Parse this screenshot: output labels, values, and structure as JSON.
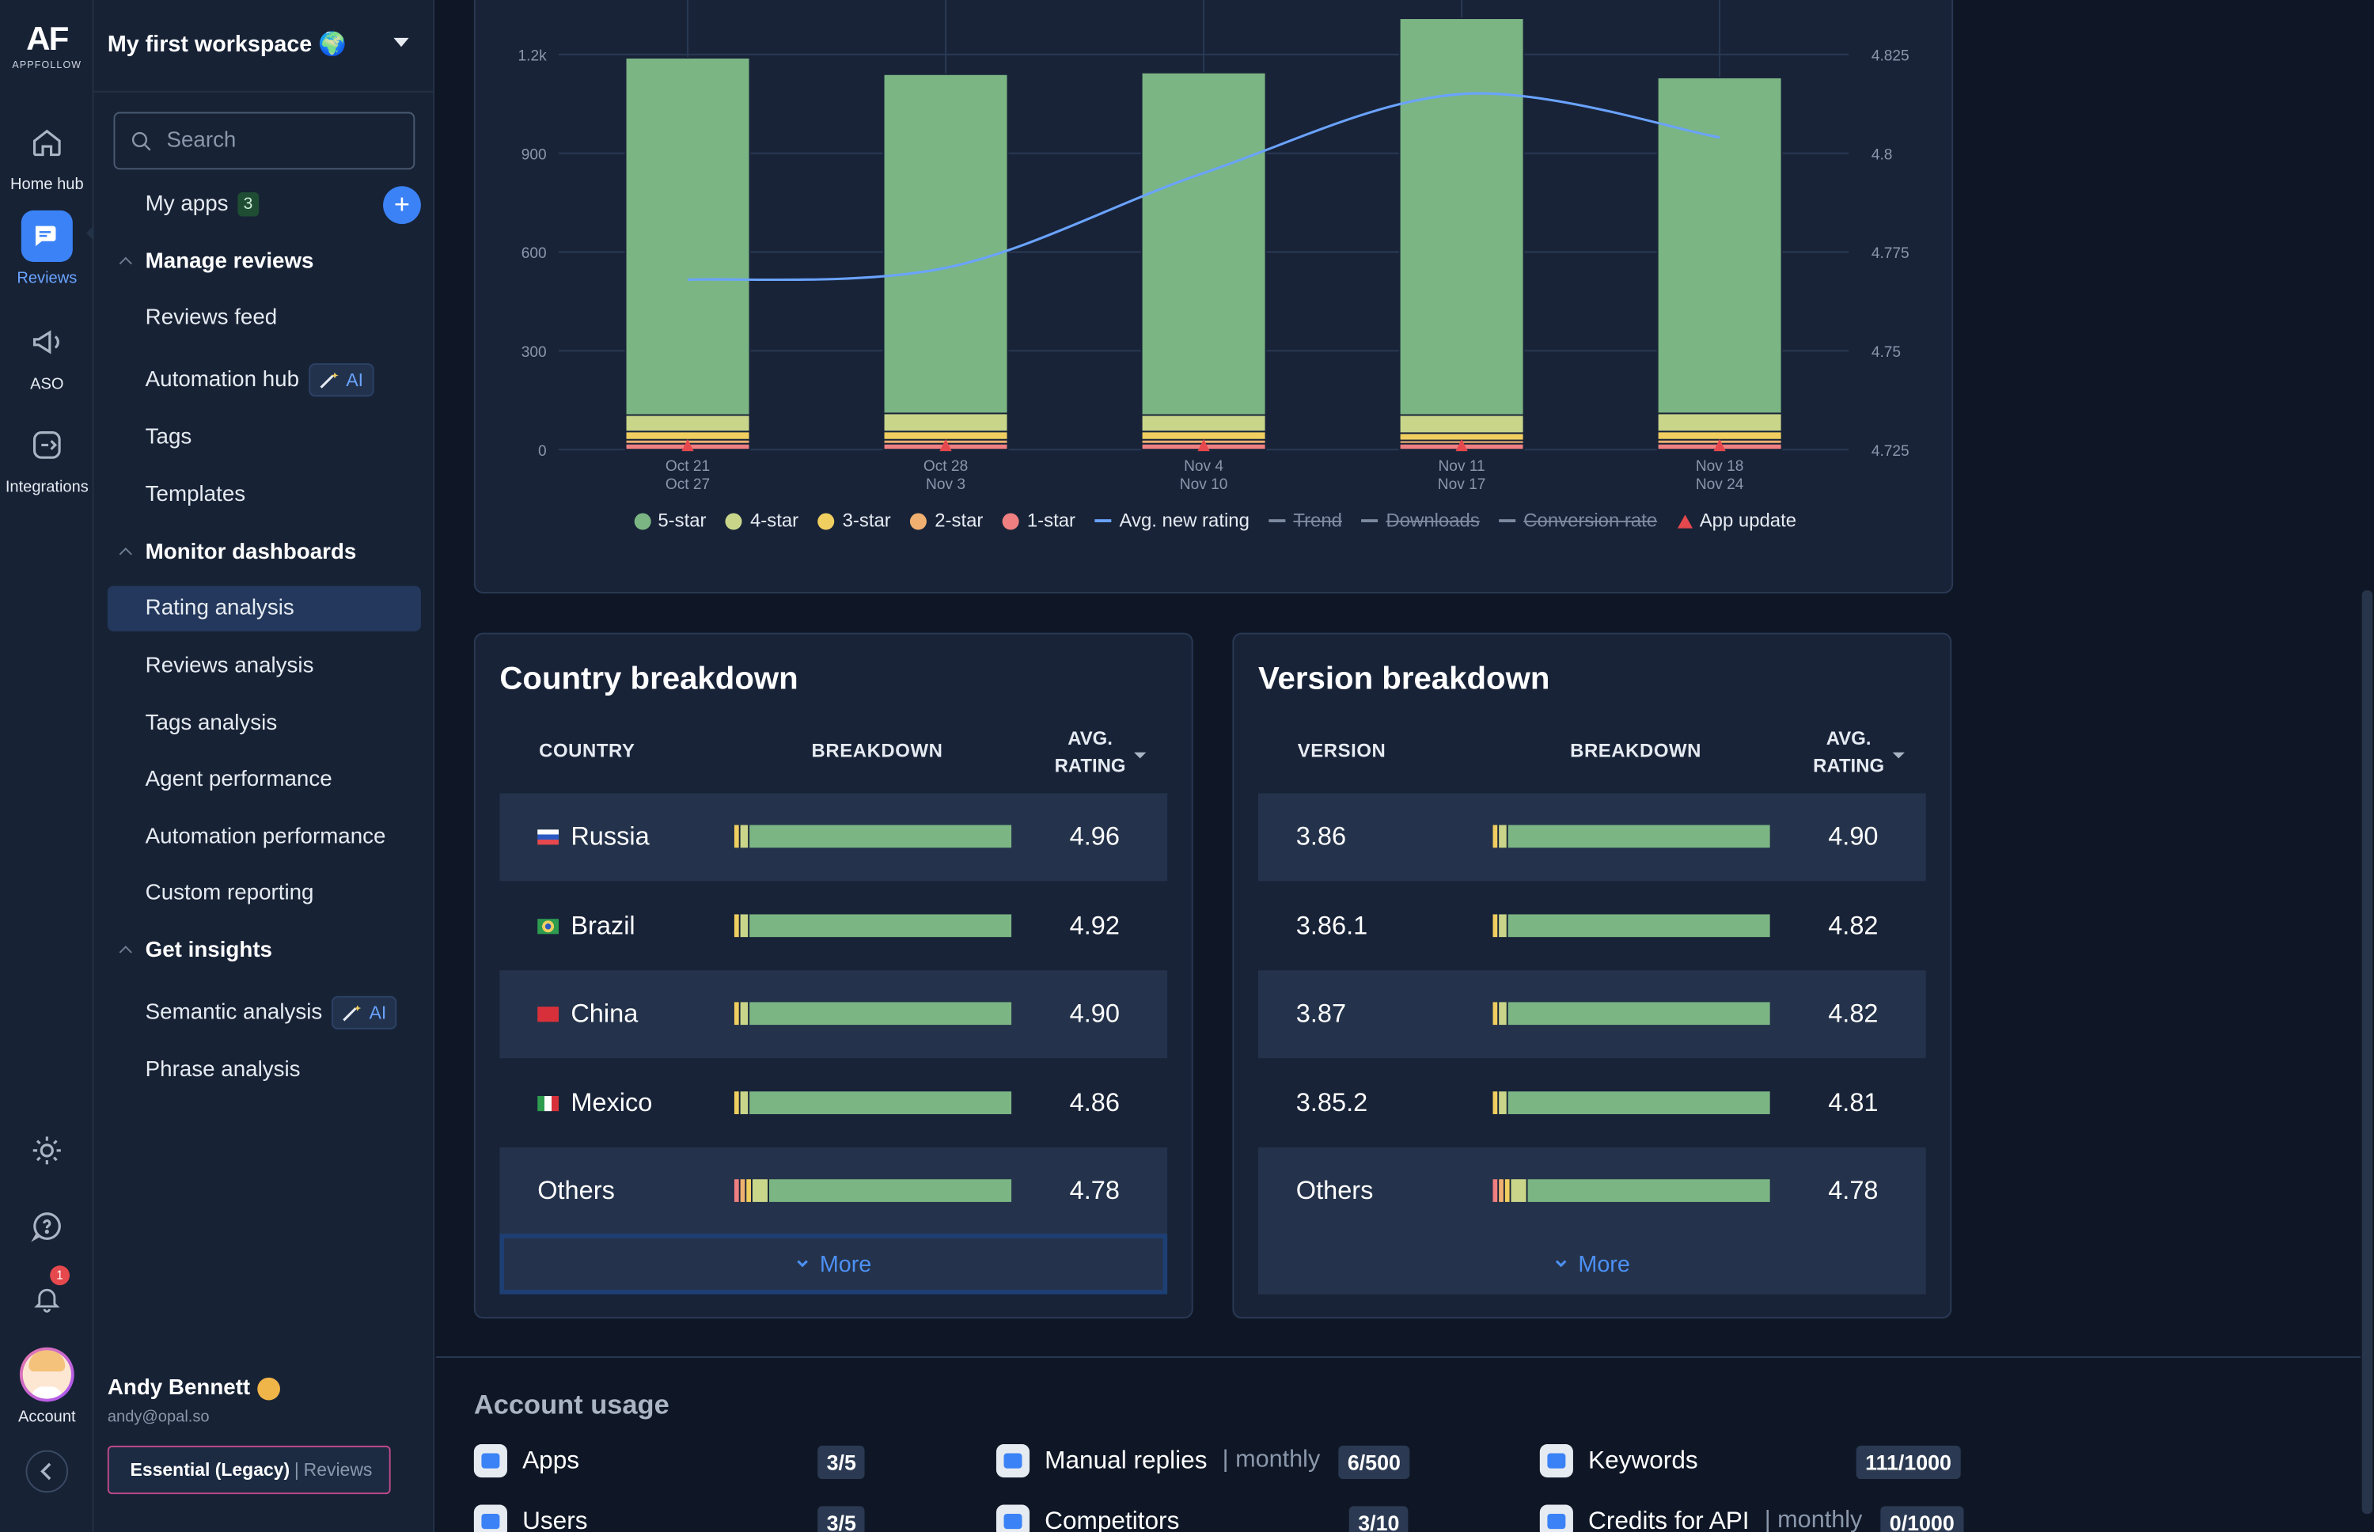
{
  "rail": {
    "logo_text": "AF",
    "logo_sub": "APPFOLLOW",
    "items": [
      {
        "label": "Home hub",
        "icon": "home-icon"
      },
      {
        "label": "Reviews",
        "icon": "chat-icon"
      },
      {
        "label": "ASO",
        "icon": "megaphone-icon"
      },
      {
        "label": "Integrations",
        "icon": "integrations-icon"
      }
    ],
    "notification_count": "1",
    "account_label": "Account"
  },
  "sidebar": {
    "workspace": "My first workspace 🌍",
    "search_placeholder": "Search",
    "my_apps": "My apps",
    "my_apps_count": "3",
    "manage_reviews": "Manage reviews",
    "reviews_feed": "Reviews feed",
    "automation_hub": "Automation hub",
    "ai_label": "AI",
    "tags": "Tags",
    "templates": "Templates",
    "monitor_dashboards": "Monitor dashboards",
    "rating_analysis": "Rating analysis",
    "reviews_analysis": "Reviews analysis",
    "tags_analysis": "Tags analysis",
    "agent_performance": "Agent performance",
    "automation_performance": "Automation performance",
    "custom_reporting": "Custom reporting",
    "get_insights": "Get insights",
    "semantic_analysis": "Semantic analysis",
    "phrase_analysis": "Phrase analysis",
    "user_name": "Andy Bennett",
    "user_email": "andy@opal.so",
    "plan_name": "Essential (Legacy)",
    "plan_sep": "|",
    "plan_product": "Reviews"
  },
  "chart_data": {
    "type": "bar",
    "categories": [
      "Oct 21\nOct 27",
      "Oct 28\nNov 3",
      "Nov 4\nNov 10",
      "Nov 11\nNov 17",
      "Nov 18\nNov 24"
    ],
    "category_lines": [
      [
        "Oct 21",
        "Oct 27"
      ],
      [
        "Oct 28",
        "Nov 3"
      ],
      [
        "Nov 4",
        "Nov 10"
      ],
      [
        "Nov 11",
        "Nov 17"
      ],
      [
        "Nov 18",
        "Nov 24"
      ]
    ],
    "stacked": true,
    "ylim": [
      0,
      1200
    ],
    "y_ticks": [
      "0",
      "300",
      "600",
      "900",
      "1.2k"
    ],
    "y2lim": [
      4.725,
      4.825
    ],
    "y2_ticks": [
      "4.725",
      "4.75",
      "4.775",
      "4.8",
      "4.825"
    ],
    "series": [
      {
        "name": "5-star",
        "color": "#7bb584",
        "values": [
          1085,
          1030,
          1040,
          1205,
          1020
        ]
      },
      {
        "name": "4-star",
        "color": "#c9d68a",
        "values": [
          50,
          55,
          50,
          55,
          55
        ]
      },
      {
        "name": "3-star",
        "color": "#f0cf60",
        "values": [
          25,
          25,
          25,
          22,
          25
        ]
      },
      {
        "name": "2-star",
        "color": "#f0b070",
        "values": [
          12,
          12,
          12,
          10,
          12
        ]
      },
      {
        "name": "1-star",
        "color": "#ef7f80",
        "values": [
          18,
          18,
          18,
          18,
          18
        ]
      }
    ],
    "line_series": {
      "name": "Avg. new rating",
      "color": "#6aa3ff",
      "values": [
        4.768,
        4.771,
        4.795,
        4.815,
        4.804
      ]
    },
    "legend": [
      {
        "label": "5-star",
        "kind": "dot",
        "color": "#7bb584",
        "enabled": true
      },
      {
        "label": "4-star",
        "kind": "dot",
        "color": "#c9d68a",
        "enabled": true
      },
      {
        "label": "3-star",
        "kind": "dot",
        "color": "#f0cf60",
        "enabled": true
      },
      {
        "label": "2-star",
        "kind": "dot",
        "color": "#f0b070",
        "enabled": true
      },
      {
        "label": "1-star",
        "kind": "dot",
        "color": "#ef7f80",
        "enabled": true
      },
      {
        "label": "Avg. new rating",
        "kind": "line",
        "color": "#6aa3ff",
        "enabled": true
      },
      {
        "label": "Trend",
        "kind": "line",
        "color": "#7d8aa0",
        "enabled": false
      },
      {
        "label": "Downloads",
        "kind": "line",
        "color": "#7d8aa0",
        "enabled": false
      },
      {
        "label": "Conversion rate",
        "kind": "line",
        "color": "#7d8aa0",
        "enabled": false
      },
      {
        "label": "App update",
        "kind": "triangle",
        "color": "#e5484d",
        "enabled": true
      }
    ],
    "legend_position": "bottom",
    "grid": true
  },
  "country": {
    "title": "Country breakdown",
    "col1": "COUNTRY",
    "col2": "BREAKDOWN",
    "col3a": "AVG.",
    "col3b": "RATING",
    "rows": [
      {
        "name": "Russia",
        "flag": "ru",
        "rating": "4.96"
      },
      {
        "name": "Brazil",
        "flag": "br",
        "rating": "4.92"
      },
      {
        "name": "China",
        "flag": "cn",
        "rating": "4.90"
      },
      {
        "name": "Mexico",
        "flag": "mx",
        "rating": "4.86"
      },
      {
        "name": "Others",
        "flag": "",
        "rating": "4.78"
      }
    ],
    "more": "More"
  },
  "version": {
    "title": "Version breakdown",
    "col1": "VERSION",
    "col2": "BREAKDOWN",
    "col3a": "AVG.",
    "col3b": "RATING",
    "rows": [
      {
        "name": "3.86",
        "rating": "4.90"
      },
      {
        "name": "3.86.1",
        "rating": "4.82"
      },
      {
        "name": "3.87",
        "rating": "4.82"
      },
      {
        "name": "3.85.2",
        "rating": "4.81"
      },
      {
        "name": "Others",
        "rating": "4.78"
      }
    ],
    "more": "More"
  },
  "usage": {
    "title": "Account usage",
    "apps": "Apps",
    "apps_val": "3/5",
    "manual_replies": "Manual replies",
    "monthly": "| monthly",
    "manual_replies_val": "6/500",
    "keywords": "Keywords",
    "keywords_val": "111/1000",
    "users": "Users",
    "users_val": "3/5",
    "competitors": "Competitors",
    "competitors_val": "3/10",
    "credits": "Credits for API",
    "credits_val": "0/1000"
  }
}
